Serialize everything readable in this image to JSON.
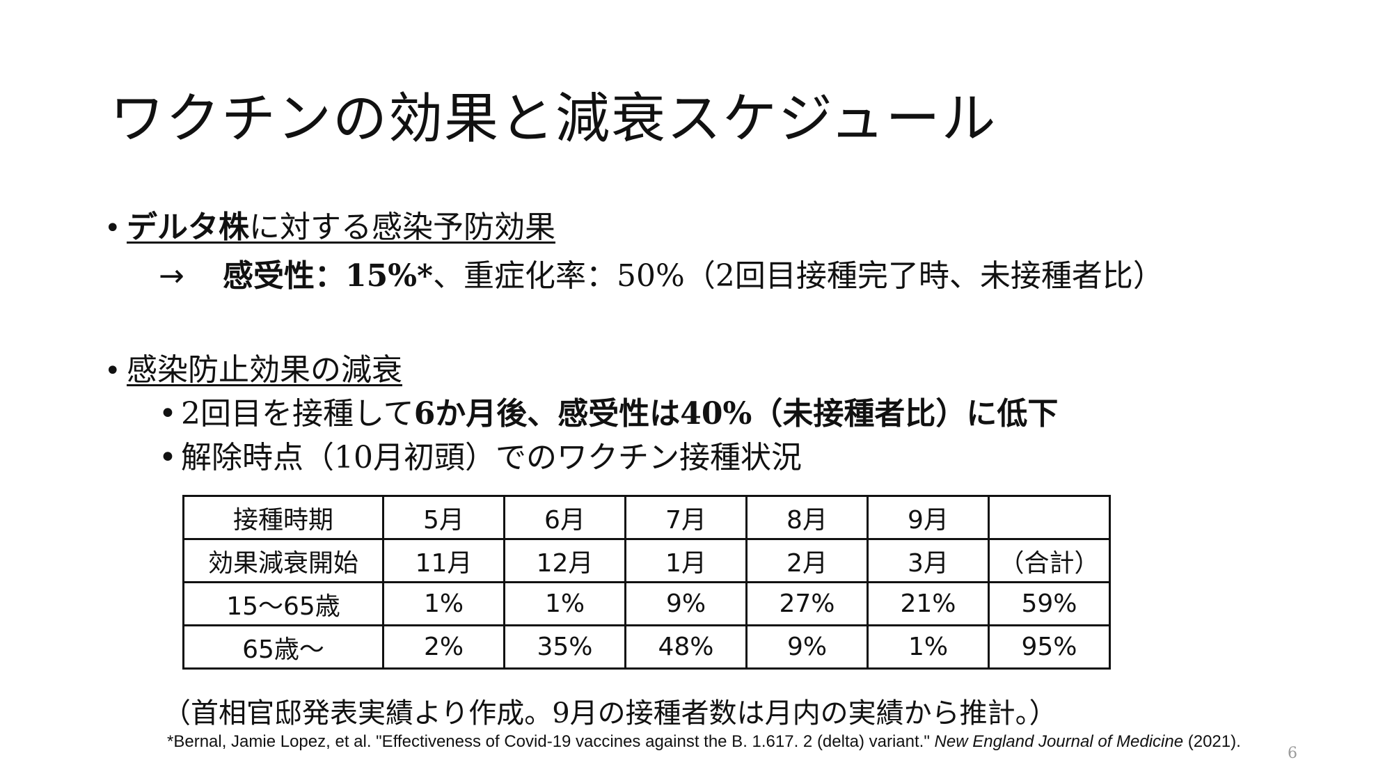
{
  "title": "ワクチンの効果と減衰スケジュール",
  "bullet1": {
    "bold_underlined": "デルタ株",
    "underlined_rest": "に対する感染予防効果",
    "arrow": "→",
    "bold_part": "感受性：15%*",
    "rest": "、重症化率：50%（2回目接種完了時、未接種者比）"
  },
  "bullet2": {
    "text": "感染防止効果の減衰",
    "sub1_plain": "2回目を接種して",
    "sub1_bold": "6か月後、感受性は40%（未接種者比）に低下",
    "sub2": "解除時点（10月初頭）でのワクチン接種状況"
  },
  "table": {
    "rows": [
      [
        "接種時期",
        "5月",
        "6月",
        "7月",
        "8月",
        "9月",
        ""
      ],
      [
        "効果減衰開始",
        "11月",
        "12月",
        "1月",
        "2月",
        "3月",
        "（合計）"
      ],
      [
        "15～65歳",
        "1%",
        "1%",
        "9%",
        "27%",
        "21%",
        "59%"
      ],
      [
        "65歳～",
        "2%",
        "35%",
        "48%",
        "9%",
        "1%",
        "95%"
      ]
    ]
  },
  "note": "（首相官邸発表実績より作成。9月の接種者数は月内の実績から推計。）",
  "reference": {
    "prefix": "*Bernal, Jamie Lopez, et al. \"Effectiveness of Covid-19 vaccines against the B. 1.617. 2 (delta) variant.\" ",
    "journal": "New England Journal of Medicine",
    "suffix": " (2021)."
  },
  "page_number": "6"
}
